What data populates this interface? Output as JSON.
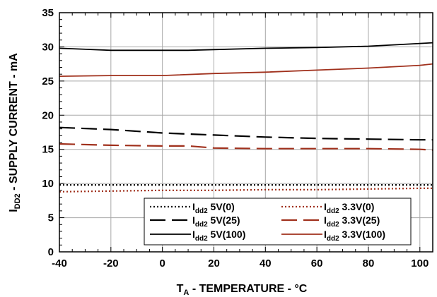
{
  "chart_data": {
    "type": "line",
    "title": "",
    "xlabel": {
      "main": "T",
      "sub": "A",
      "rest": " - TEMPERATURE - °C"
    },
    "ylabel": {
      "main": "I",
      "sub": "DD2",
      "rest": " - SUPPLY CURRENT - mA"
    },
    "xlim": [
      -40,
      105
    ],
    "ylim": [
      0,
      35
    ],
    "x_ticks": [
      -40,
      -20,
      0,
      20,
      40,
      60,
      80,
      100
    ],
    "y_ticks": [
      0,
      5,
      10,
      15,
      20,
      25,
      30,
      35
    ],
    "grid": true,
    "legend_position": "bottom-center",
    "series": [
      {
        "name": {
          "main": "I",
          "sub": "dd2",
          "rest": " 5V(0)"
        },
        "color": "#000000",
        "dash": "dotted",
        "x": [
          -40,
          105
        ],
        "y": [
          9.8,
          9.8
        ]
      },
      {
        "name": {
          "main": "I",
          "sub": "dd2",
          "rest": " 5V(25)"
        },
        "color": "#000000",
        "dash": "long",
        "x": [
          -40,
          -20,
          0,
          20,
          40,
          60,
          80,
          100,
          105
        ],
        "y": [
          18.2,
          17.9,
          17.4,
          17.1,
          16.8,
          16.6,
          16.5,
          16.4,
          16.4
        ]
      },
      {
        "name": {
          "main": "I",
          "sub": "dd2",
          "rest": " 5V(100)"
        },
        "color": "#000000",
        "dash": "solid",
        "x": [
          -40,
          -20,
          0,
          10,
          20,
          40,
          60,
          80,
          100,
          105
        ],
        "y": [
          29.8,
          29.5,
          29.5,
          29.5,
          29.6,
          29.8,
          29.9,
          30.1,
          30.5,
          30.6
        ]
      },
      {
        "name": {
          "main": "I",
          "sub": "dd2",
          "rest": " 3.3V(0)"
        },
        "color": "#a0301c",
        "dash": "dotted",
        "x": [
          -40,
          -20,
          0,
          20,
          40,
          60,
          80,
          100,
          105
        ],
        "y": [
          8.8,
          8.9,
          9.0,
          9.0,
          9.1,
          9.1,
          9.2,
          9.3,
          9.3
        ]
      },
      {
        "name": {
          "main": "I",
          "sub": "dd2",
          "rest": " 3.3V(25)"
        },
        "color": "#a0301c",
        "dash": "long",
        "x": [
          -40,
          -20,
          0,
          10,
          20,
          40,
          60,
          80,
          100,
          105
        ],
        "y": [
          15.8,
          15.6,
          15.5,
          15.5,
          15.2,
          15.1,
          15.1,
          15.1,
          15.0,
          14.9
        ]
      },
      {
        "name": {
          "main": "I",
          "sub": "dd2",
          "rest": " 3.3V(100)"
        },
        "color": "#a0301c",
        "dash": "solid",
        "x": [
          -40,
          -20,
          0,
          20,
          40,
          60,
          80,
          100,
          105
        ],
        "y": [
          25.7,
          25.8,
          25.8,
          26.1,
          26.3,
          26.6,
          26.9,
          27.3,
          27.5
        ]
      }
    ]
  }
}
